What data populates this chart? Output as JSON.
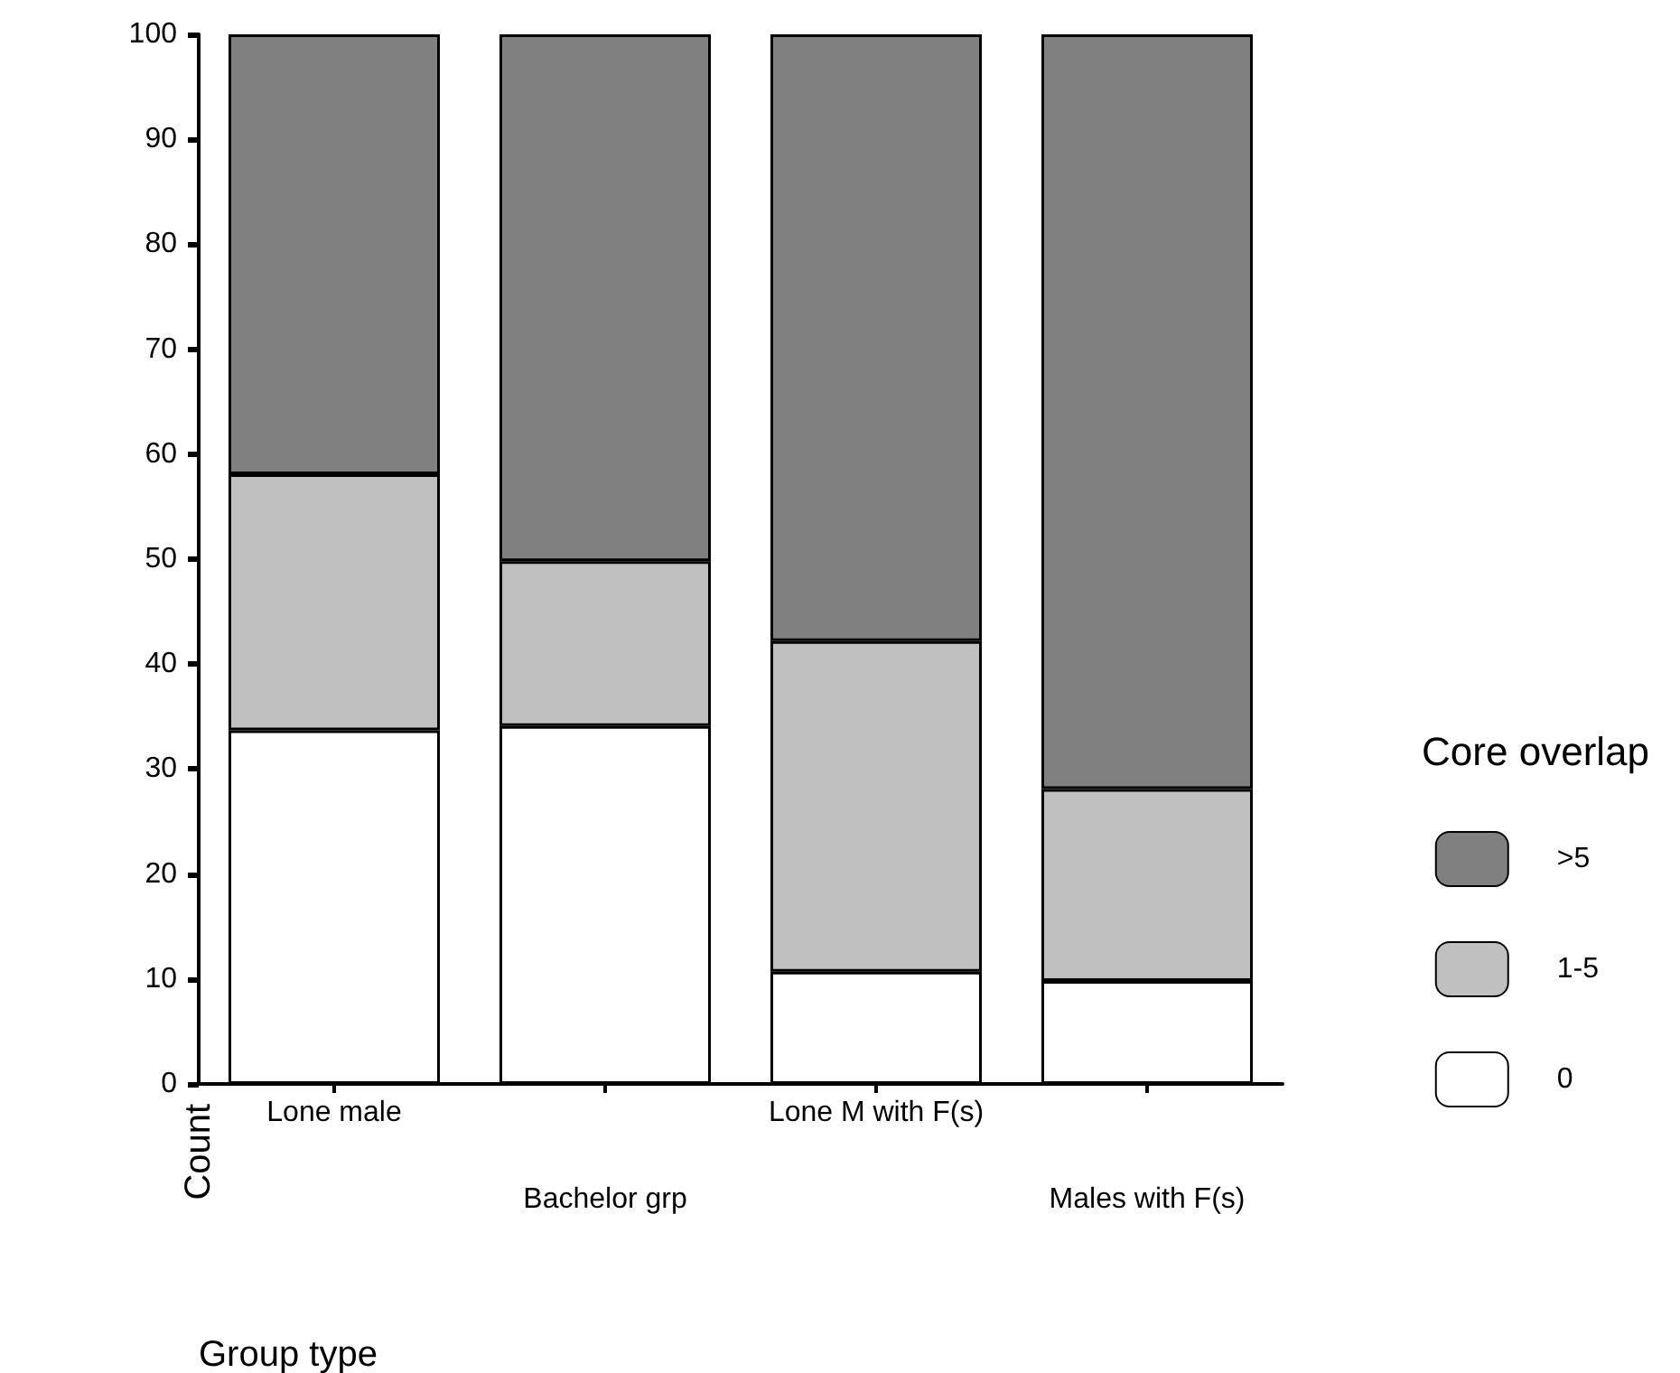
{
  "chart_data": {
    "type": "bar",
    "stacked": true,
    "xlabel": "Group type",
    "ylabel": "Count",
    "legend_title": "Core overlap",
    "categories": [
      "Lone male",
      "Bachelor grp",
      "Lone M with F(s)",
      "Males with F(s)"
    ],
    "series": [
      {
        "name": "0",
        "color": "#ffffff",
        "values": [
          33.7,
          34.1,
          10.7,
          9.8
        ]
      },
      {
        "name": "1-5",
        "color": "#c0c0c0",
        "values": [
          24.4,
          15.7,
          31.5,
          18.3
        ]
      },
      {
        "name": ">5",
        "color": "#808080",
        "values": [
          41.9,
          50.2,
          57.8,
          71.9
        ]
      }
    ],
    "ylim": [
      0,
      100
    ],
    "yticks": [
      0,
      10,
      20,
      30,
      40,
      50,
      60,
      70,
      80,
      90,
      100
    ],
    "grid": false,
    "legend": "right"
  }
}
